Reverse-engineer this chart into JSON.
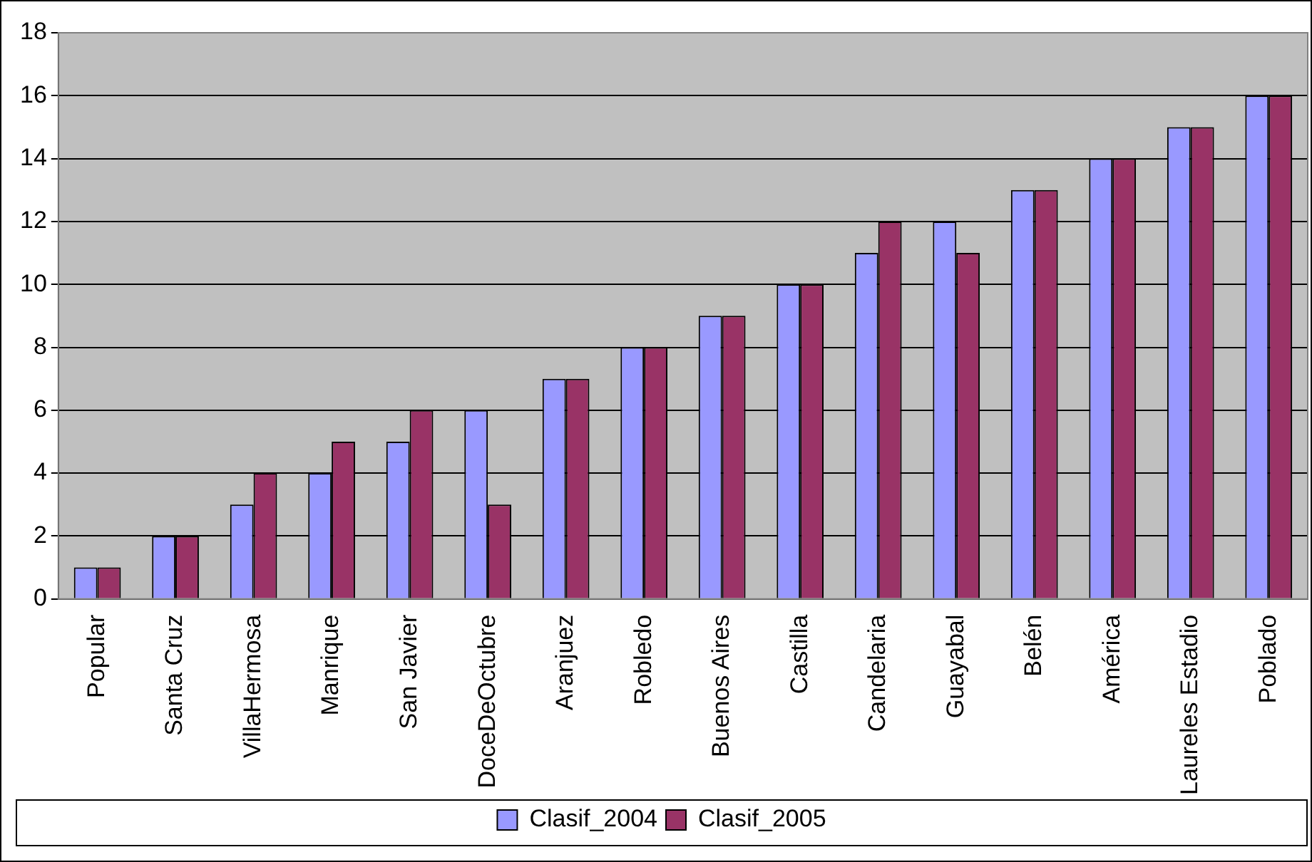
{
  "chart_data": {
    "type": "bar",
    "categories": [
      "Popular",
      "Santa Cruz",
      "VillaHermosa",
      "Manrique",
      "San Javier",
      "DoceDeOctubre",
      "Aranjuez",
      "Robledo",
      "Buenos Aires",
      "Castilla",
      "Candelaria",
      "Guayabal",
      "Belén",
      "América",
      "Laureles Estadio",
      "Poblado"
    ],
    "series": [
      {
        "name": "Clasif_2004",
        "color": "#9999ff",
        "values": [
          1,
          2,
          3,
          4,
          5,
          6,
          7,
          8,
          9,
          10,
          11,
          12,
          13,
          14,
          15,
          16
        ]
      },
      {
        "name": "Clasif_2005",
        "color": "#993366",
        "values": [
          1,
          2,
          4,
          5,
          6,
          3,
          7,
          8,
          9,
          10,
          12,
          11,
          13,
          14,
          15,
          16
        ]
      }
    ],
    "ylim": [
      0,
      18
    ],
    "yticks": [
      0,
      2,
      4,
      6,
      8,
      10,
      12,
      14,
      16,
      18
    ],
    "grid": "y",
    "legend": "bottom"
  }
}
